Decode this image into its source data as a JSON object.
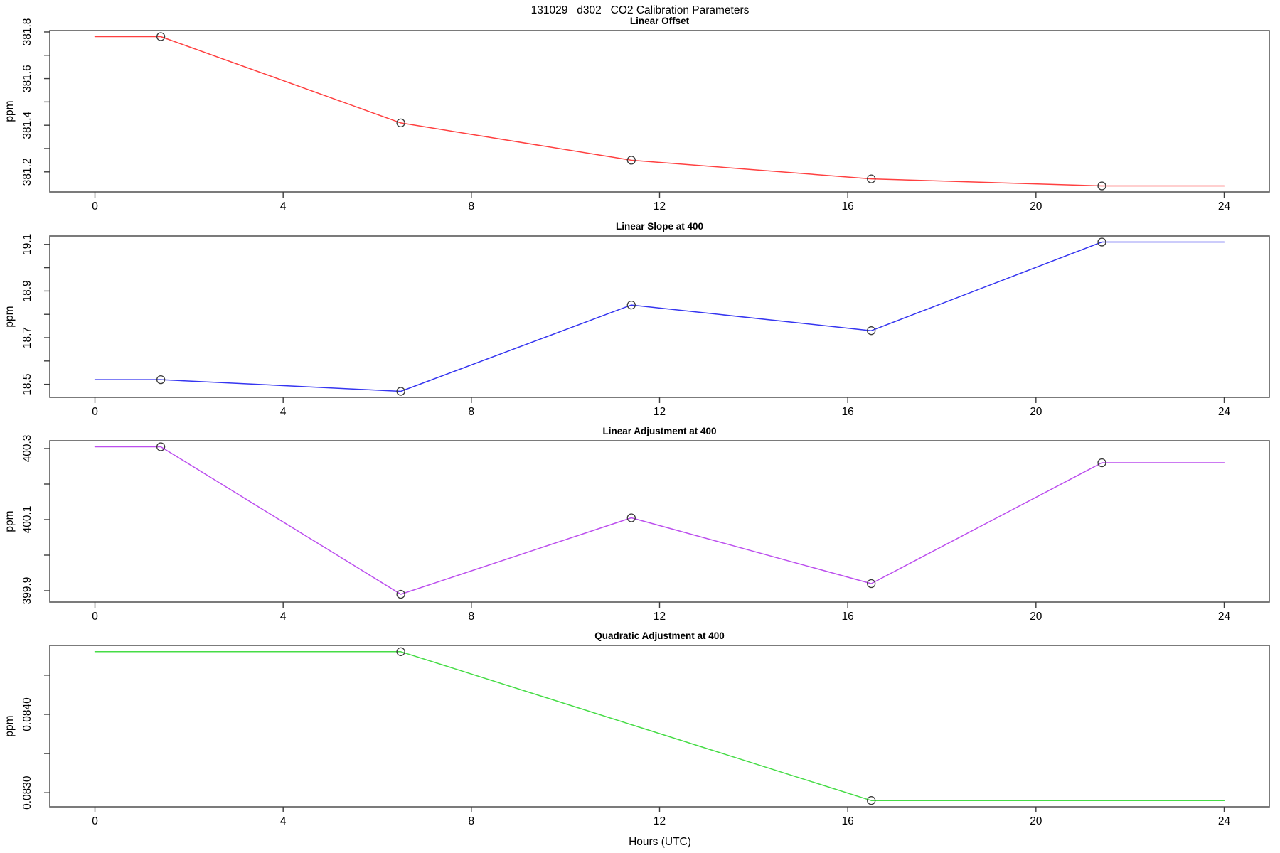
{
  "header": {
    "title": "131029   d302   CO2 Calibration Parameters"
  },
  "x_axis": {
    "label": "Hours (UTC)",
    "ticks": [
      0,
      4,
      8,
      12,
      16,
      20,
      24
    ],
    "xlim": [
      -0.96,
      24.96
    ]
  },
  "chart_data": [
    {
      "type": "line",
      "title": "Linear Offset",
      "ylabel": "ppm",
      "color": "#ff4040",
      "x": [
        1.4,
        6.5,
        11.4,
        16.5,
        21.4
      ],
      "y": [
        381.78,
        381.41,
        381.25,
        381.17,
        381.14
      ],
      "line_extends": [
        0,
        24
      ],
      "ylim": [
        381.114,
        381.806
      ],
      "yticks": {
        "values": [
          381.2,
          381.3,
          381.4,
          381.5,
          381.6,
          381.7,
          381.8
        ],
        "labels": [
          "381.2",
          "",
          "381.4",
          "",
          "381.6",
          "",
          "381.8"
        ]
      },
      "xticks": [
        0,
        4,
        8,
        12,
        16,
        20,
        24
      ],
      "grid": false,
      "legend": "none"
    },
    {
      "type": "line",
      "title": "Linear Slope at 400",
      "ylabel": "ppm",
      "color": "#3535f0",
      "x": [
        1.4,
        6.5,
        11.4,
        16.5,
        21.4
      ],
      "y": [
        18.52,
        18.47,
        18.84,
        18.73,
        19.11
      ],
      "line_extends": [
        0,
        24
      ],
      "ylim": [
        18.444,
        19.136
      ],
      "yticks": {
        "values": [
          18.5,
          18.6,
          18.7,
          18.8,
          18.9,
          19.0,
          19.1
        ],
        "labels": [
          "18.5",
          "",
          "18.7",
          "",
          "18.9",
          "",
          "19.1"
        ]
      },
      "xticks": [
        0,
        4,
        8,
        12,
        16,
        20,
        24
      ],
      "grid": false,
      "legend": "none"
    },
    {
      "type": "line",
      "title": "Linear Adjustment at 400",
      "ylabel": "ppm",
      "color": "#bc4fee",
      "x": [
        1.4,
        6.5,
        11.4,
        16.5,
        21.4
      ],
      "y": [
        400.305,
        399.89,
        400.105,
        399.92,
        400.26
      ],
      "line_extends": [
        0,
        24
      ],
      "ylim": [
        399.868,
        400.322
      ],
      "yticks": {
        "values": [
          399.9,
          400.0,
          400.1,
          400.2,
          400.3
        ],
        "labels": [
          "399.9",
          "",
          "400.1",
          "",
          "400.3"
        ]
      },
      "xticks": [
        0,
        4,
        8,
        12,
        16,
        20,
        24
      ],
      "grid": false,
      "legend": "none"
    },
    {
      "type": "line",
      "title": "Quadratic Adjustment at 400",
      "ylabel": "ppm",
      "color": "#46dc46",
      "x": [
        6.5,
        16.5
      ],
      "y": [
        0.0848,
        0.0829
      ],
      "line_extends": [
        0,
        24
      ],
      "ylim": [
        0.08282,
        0.08488
      ],
      "yticks": {
        "values": [
          0.083,
          0.0835,
          0.084,
          0.0845
        ],
        "labels": [
          "0.0830",
          "",
          "0.0840",
          ""
        ]
      },
      "xticks": [
        0,
        4,
        8,
        12,
        16,
        20,
        24
      ],
      "grid": false,
      "legend": "none"
    }
  ]
}
